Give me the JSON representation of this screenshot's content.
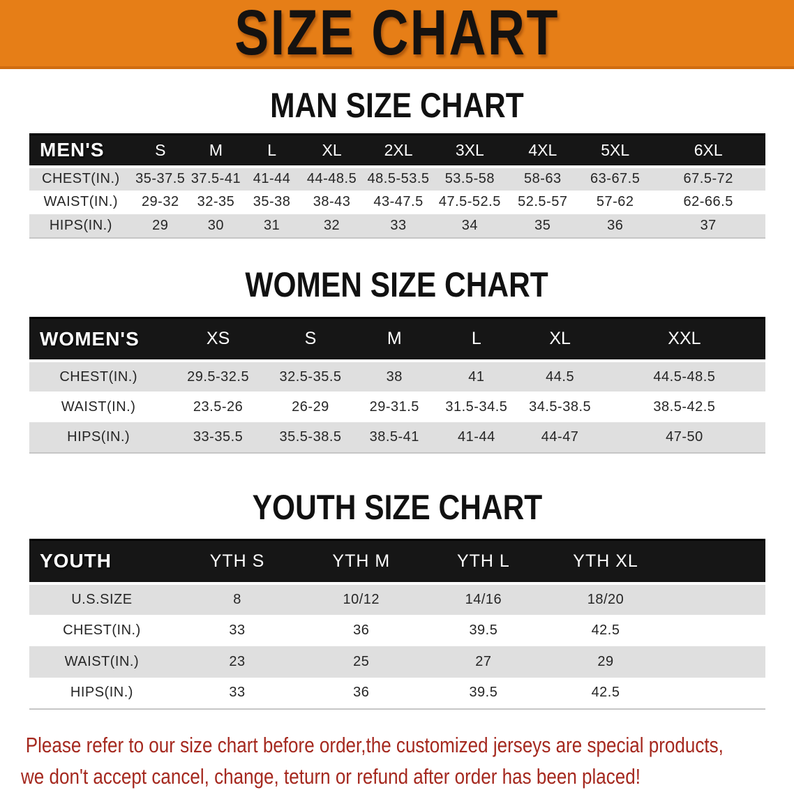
{
  "banner": {
    "title": "SIZE CHART"
  },
  "colors": {
    "banner_bg": "#e67e17",
    "header_bar": "#161616",
    "row_alt": "#dfdfdf",
    "notice_text": "#a5291f"
  },
  "sections": [
    {
      "heading": "MAN SIZE CHART",
      "table": {
        "columns": [
          "MEN'S",
          "S",
          "M",
          "L",
          "XL",
          "2XL",
          "3XL",
          "4XL",
          "5XL",
          "6XL"
        ],
        "rows": [
          {
            "label": "CHEST(IN.)",
            "values": [
              "35-37.5",
              "37.5-41",
              "41-44",
              "44-48.5",
              "48.5-53.5",
              "53.5-58",
              "58-63",
              "63-67.5",
              "67.5-72"
            ]
          },
          {
            "label": "WAIST(IN.)",
            "values": [
              "29-32",
              "32-35",
              "35-38",
              "38-43",
              "43-47.5",
              "47.5-52.5",
              "52.5-57",
              "57-62",
              "62-66.5"
            ]
          },
          {
            "label": "HIPS(IN.)",
            "values": [
              "29",
              "30",
              "31",
              "32",
              "33",
              "34",
              "35",
              "36",
              "37"
            ]
          }
        ]
      }
    },
    {
      "heading": "WOMEN SIZE CHART",
      "table": {
        "columns": [
          "WOMEN'S",
          "XS",
          "S",
          "M",
          "L",
          "XL",
          "XXL"
        ],
        "rows": [
          {
            "label": "CHEST(IN.)",
            "values": [
              "29.5-32.5",
              "32.5-35.5",
              "38",
              "41",
              "44.5",
              "44.5-48.5"
            ]
          },
          {
            "label": "WAIST(IN.)",
            "values": [
              "23.5-26",
              "26-29",
              "29-31.5",
              "31.5-34.5",
              "34.5-38.5",
              "38.5-42.5"
            ]
          },
          {
            "label": "HIPS(IN.)",
            "values": [
              "33-35.5",
              "35.5-38.5",
              "38.5-41",
              "41-44",
              "44-47",
              "47-50"
            ]
          }
        ]
      }
    },
    {
      "heading": "YOUTH SIZE CHART",
      "table": {
        "columns": [
          "YOUTH",
          "YTH S",
          "YTH M",
          "YTH L",
          "YTH XL",
          ""
        ],
        "rows": [
          {
            "label": "U.S.SIZE",
            "values": [
              "8",
              "10/12",
              "14/16",
              "18/20",
              ""
            ]
          },
          {
            "label": "CHEST(IN.)",
            "values": [
              "33",
              "36",
              "39.5",
              "42.5",
              ""
            ]
          },
          {
            "label": "WAIST(IN.)",
            "values": [
              "23",
              "25",
              "27",
              "29",
              ""
            ]
          },
          {
            "label": "HIPS(IN.)",
            "values": [
              "33",
              "36",
              "39.5",
              "42.5",
              ""
            ]
          }
        ]
      }
    }
  ],
  "footer": {
    "lines": [
      "Please refer to our size chart before order,the customized jerseys are special products,",
      "we don't accept cancel, change, teturn or refund after order has been placed!"
    ]
  }
}
